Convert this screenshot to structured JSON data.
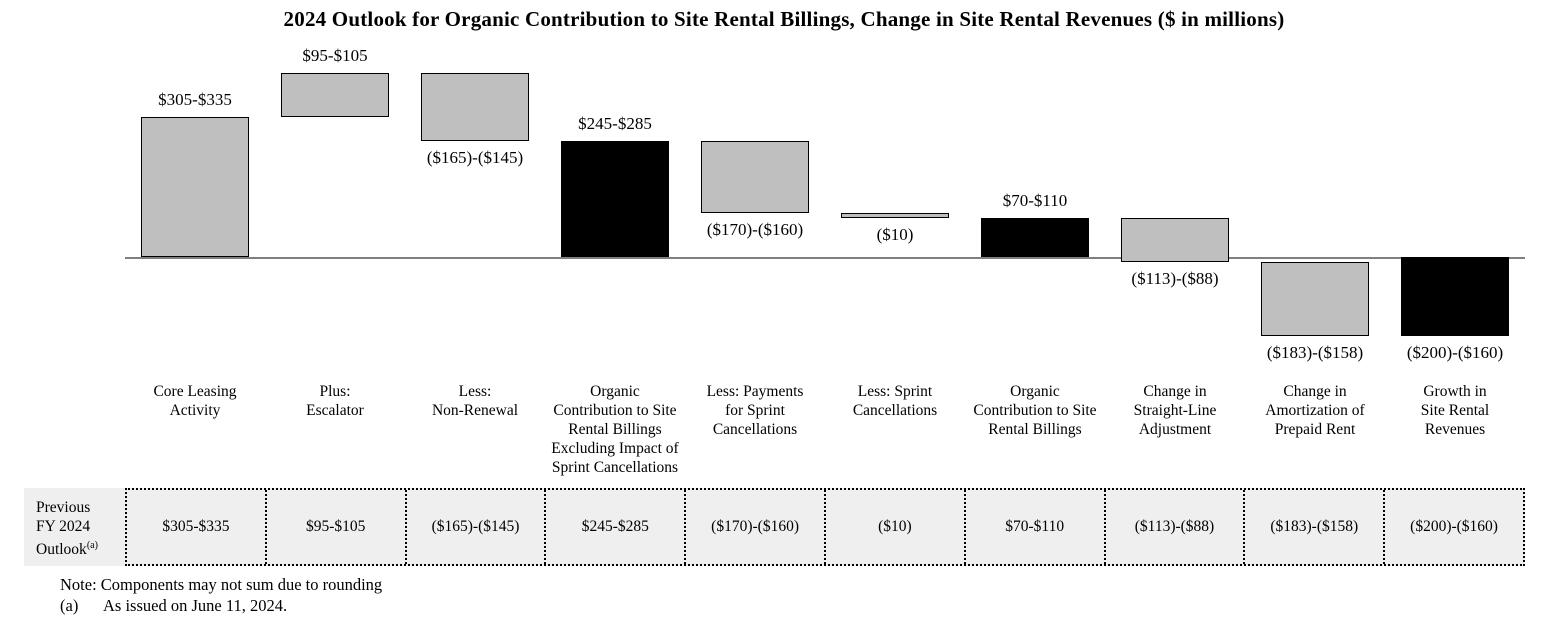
{
  "chart_data": {
    "type": "bar",
    "subtype": "waterfall",
    "title": "2024 Outlook for Organic Contribution to Site Rental Billings, Change in Site Rental Revenues ($ in millions)",
    "unit": "$ in millions",
    "ylim": [
      -201,
      485
    ],
    "grid": false,
    "legend": false,
    "axis_color": "#808080",
    "component_bar_color": "#bfbfbf",
    "subtotal_bar_color": "#000000",
    "bars": [
      {
        "category": "Core Leasing\nActivity",
        "range_label": "$305-$335",
        "range": [
          305,
          335
        ],
        "start": 0,
        "end": 320,
        "color": "#bfbfbf",
        "kind": "increase",
        "label_position": "above"
      },
      {
        "category": "Plus:\nEscalator",
        "range_label": "$95-$105",
        "range": [
          95,
          105
        ],
        "start": 320,
        "end": 420,
        "color": "#bfbfbf",
        "kind": "increase",
        "label_position": "above"
      },
      {
        "category": "Less:\nNon-Renewal",
        "range_label": "($165)-($145)",
        "range": [
          -165,
          -145
        ],
        "start": 420,
        "end": 265,
        "color": "#bfbfbf",
        "kind": "decrease",
        "label_position": "below"
      },
      {
        "category": "Organic\nContribution to Site\nRental Billings\nExcluding Impact of\nSprint Cancellations",
        "range_label": "$245-$285",
        "range": [
          245,
          285
        ],
        "start": 0,
        "end": 265,
        "color": "#000000",
        "kind": "subtotal",
        "label_position": "above"
      },
      {
        "category": "Less: Payments\nfor Sprint\nCancellations",
        "range_label": "($170)-($160)",
        "range": [
          -170,
          -160
        ],
        "start": 265,
        "end": 100,
        "color": "#bfbfbf",
        "kind": "decrease",
        "label_position": "below"
      },
      {
        "category": "Less: Sprint\nCancellations",
        "range_label": "($10)",
        "range": [
          -10,
          -10
        ],
        "start": 100,
        "end": 90,
        "color": "#bfbfbf",
        "kind": "decrease",
        "label_position": "below"
      },
      {
        "category": "Organic\nContribution to Site\nRental Billings",
        "range_label": "$70-$110",
        "range": [
          70,
          110
        ],
        "start": 0,
        "end": 90,
        "color": "#000000",
        "kind": "subtotal",
        "label_position": "above"
      },
      {
        "category": "Change in\nStraight-Line\nAdjustment",
        "range_label": "($113)-($88)",
        "range": [
          -113,
          -88
        ],
        "start": 90,
        "end": -10.5,
        "color": "#bfbfbf",
        "kind": "decrease",
        "label_position": "below"
      },
      {
        "category": "Change in\nAmortization of\nPrepaid Rent",
        "range_label": "($183)-($158)",
        "range": [
          -183,
          -158
        ],
        "start": -10.5,
        "end": -181,
        "color": "#bfbfbf",
        "kind": "decrease",
        "label_position": "below"
      },
      {
        "category": "Growth in\nSite Rental\nRevenues",
        "range_label": "($200)-($160)",
        "range": [
          -200,
          -160
        ],
        "start": 0,
        "end": -180,
        "color": "#000000",
        "kind": "subtotal",
        "label_position": "below"
      }
    ]
  },
  "table": {
    "row_header": "Previous\nFY 2024\nOutlook",
    "row_header_superscript": "(a)",
    "values": [
      "$305-$335",
      "$95-$105",
      "($165)-($145)",
      "$245-$285",
      "($170)-($160)",
      "($10)",
      "$70-$110",
      "($113)-($88)",
      "($183)-($158)",
      "($200)-($160)"
    ]
  },
  "notes": {
    "rounding": "Note: Components may not sum due to rounding",
    "footnote_marker": "(a)",
    "footnote_text": "As issued on June 11, 2024."
  }
}
